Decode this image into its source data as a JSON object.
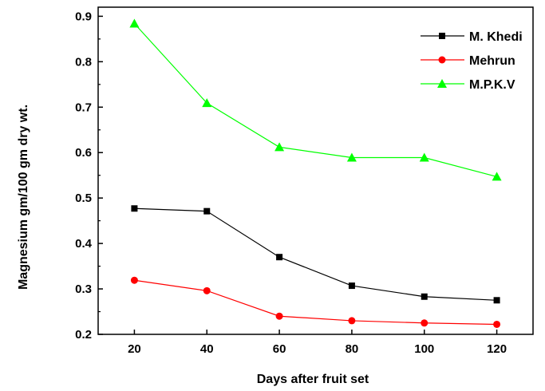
{
  "chart_data": {
    "type": "line",
    "title": "",
    "xlabel": "Days after fruit set",
    "ylabel": "Magnesium gm/100 gm dry wt.",
    "xlim": [
      10,
      130
    ],
    "ylim": [
      0.2,
      0.92
    ],
    "xticks": [
      20,
      40,
      60,
      80,
      100,
      120
    ],
    "yticks": [
      0.2,
      0.3,
      0.4,
      0.5,
      0.6,
      0.7,
      0.8,
      0.9
    ],
    "grid": false,
    "legend_position": "top-right",
    "x": [
      20,
      40,
      60,
      80,
      100,
      120
    ],
    "series": [
      {
        "name": "M. Khedi",
        "values": [
          0.477,
          0.471,
          0.37,
          0.307,
          0.283,
          0.275
        ],
        "color": "#000000",
        "marker": "square"
      },
      {
        "name": "Mehrun",
        "values": [
          0.319,
          0.296,
          0.24,
          0.23,
          0.225,
          0.222
        ],
        "color": "#ff0000",
        "marker": "circle"
      },
      {
        "name": "M.P.K.V",
        "values": [
          0.884,
          0.709,
          0.612,
          0.589,
          0.589,
          0.547
        ],
        "color": "#00ff00",
        "marker": "triangle"
      }
    ]
  }
}
